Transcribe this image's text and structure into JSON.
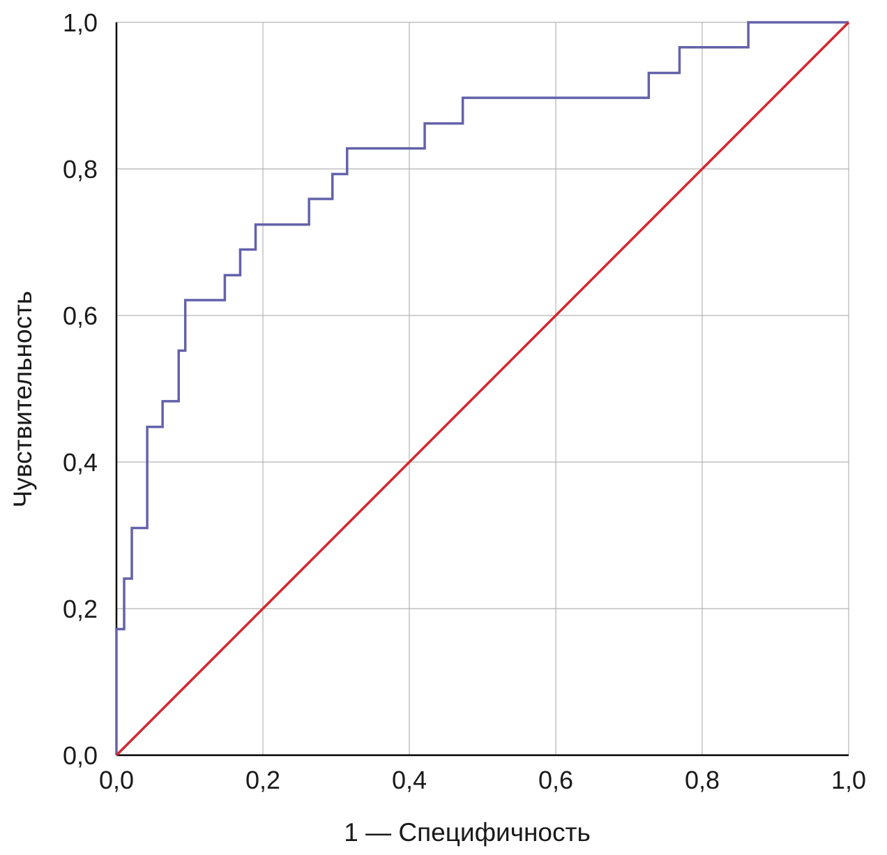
{
  "chart_data": {
    "type": "line",
    "title": "",
    "xlabel": "1 — Специфичность",
    "ylabel": "Чувствительность",
    "xlim": [
      0,
      1
    ],
    "ylim": [
      0,
      1
    ],
    "grid": true,
    "xticks": [
      "0,0",
      "0,2",
      "0,4",
      "0,6",
      "0,8",
      "1,0"
    ],
    "yticks": [
      "0,0",
      "0,2",
      "0,4",
      "0,6",
      "0,8",
      "1,0"
    ],
    "tick_values": [
      0,
      0.2,
      0.4,
      0.6,
      0.8,
      1.0
    ],
    "series": [
      {
        "name": "ROC",
        "color": "#6462aa",
        "step": true,
        "x": [
          0,
          0,
          0.0105,
          0.0105,
          0.021,
          0.021,
          0.042,
          0.042,
          0.063,
          0.063,
          0.085,
          0.085,
          0.094,
          0.094,
          0.148,
          0.148,
          0.169,
          0.169,
          0.19,
          0.19,
          0.263,
          0.263,
          0.295,
          0.295,
          0.315,
          0.315,
          0.421,
          0.421,
          0.473,
          0.473,
          0.727,
          0.727,
          0.769,
          0.769,
          0.863,
          0.863,
          1.0
        ],
        "y": [
          0,
          0.172,
          0.172,
          0.241,
          0.241,
          0.31,
          0.31,
          0.448,
          0.448,
          0.483,
          0.483,
          0.552,
          0.552,
          0.621,
          0.621,
          0.655,
          0.655,
          0.69,
          0.69,
          0.724,
          0.724,
          0.759,
          0.759,
          0.793,
          0.793,
          0.828,
          0.828,
          0.862,
          0.862,
          0.897,
          0.897,
          0.931,
          0.931,
          0.966,
          0.966,
          1.0,
          1.0
        ]
      },
      {
        "name": "Reference",
        "color": "#d4262e",
        "x": [
          0,
          1
        ],
        "y": [
          0,
          1
        ]
      }
    ]
  }
}
